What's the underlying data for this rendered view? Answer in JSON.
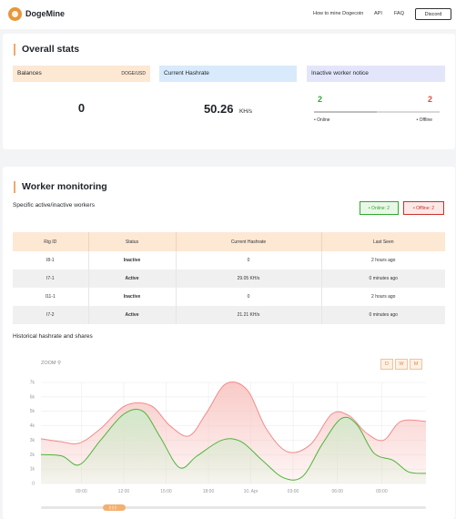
{
  "header": {
    "brand": "DogeMine",
    "nav": [
      "How to mine Dogecoin",
      "API",
      "FAQ"
    ],
    "discord": "Discord"
  },
  "overall": {
    "title": "Overall stats",
    "balances": {
      "label": "Balances",
      "unit": "DOGE/USD",
      "value": "0"
    },
    "hashrate": {
      "label": "Current Hashrate",
      "value": "50.26",
      "unit": "KH/s"
    },
    "notice": {
      "label": "Inactive worker notice",
      "online_count": "2",
      "offline_count": "2",
      "online_label": "• Online",
      "offline_label": "• Offline",
      "online_fraction": 0.5
    }
  },
  "workers": {
    "title": "Worker monitoring",
    "subtitle": "Specific active/inactive workers",
    "filter_online": "• Online: 2",
    "filter_offline": "• Offline: 2",
    "columns": [
      "Rig ID",
      "Status",
      "Current Hashrate",
      "Last Seen"
    ],
    "rows": [
      [
        "I8-1",
        "Inactive",
        "0",
        "2 hours ago"
      ],
      [
        "I7-1",
        "Active",
        "29.05 KH/s",
        "0 minutes ago"
      ],
      [
        "I11-1",
        "Inactive",
        "0",
        "2 hours ago"
      ],
      [
        "I7-2",
        "Active",
        "21.21 KH/s",
        "0 minutes ago"
      ]
    ],
    "chart_title": "Historical hashrate and shares"
  },
  "chart_data": {
    "type": "area",
    "zoom_label": "ZOOM",
    "range_buttons": [
      "D",
      "W",
      "M"
    ],
    "y_ticks": [
      "0",
      "1k",
      "2k",
      "3k",
      "4k",
      "5k",
      "6k",
      "7k"
    ],
    "ylim": [
      0,
      7000
    ],
    "x": [
      "06:00",
      "12:00",
      "18:00",
      "00:00",
      "10. Apr",
      "03:00",
      "06:00",
      "09:00"
    ],
    "x_ticks": [
      "09:00",
      "12:00",
      "15:00",
      "18:00",
      "10. Apr",
      "03:00",
      "06:00",
      "09:00"
    ],
    "x_tick_positions": [
      0.105,
      0.215,
      0.325,
      0.435,
      0.545,
      0.655,
      0.77,
      0.885
    ],
    "series": [
      {
        "color": "#f28b8b",
        "fill": "#f8c7c4",
        "points": [
          [
            0.0,
            3100
          ],
          [
            0.05,
            2900
          ],
          [
            0.1,
            2800
          ],
          [
            0.155,
            3800
          ],
          [
            0.22,
            5400
          ],
          [
            0.285,
            5400
          ],
          [
            0.335,
            4000
          ],
          [
            0.385,
            3300
          ],
          [
            0.43,
            4900
          ],
          [
            0.48,
            6900
          ],
          [
            0.535,
            6500
          ],
          [
            0.585,
            3800
          ],
          [
            0.64,
            2200
          ],
          [
            0.7,
            2700
          ],
          [
            0.755,
            4800
          ],
          [
            0.8,
            4700
          ],
          [
            0.845,
            3500
          ],
          [
            0.89,
            3000
          ],
          [
            0.935,
            4300
          ],
          [
            1.0,
            4300
          ]
        ]
      },
      {
        "color": "#4fb53a",
        "fill": "#cfeaca",
        "points": [
          [
            0.0,
            2000
          ],
          [
            0.055,
            1900
          ],
          [
            0.1,
            1300
          ],
          [
            0.155,
            3000
          ],
          [
            0.215,
            4800
          ],
          [
            0.265,
            5000
          ],
          [
            0.31,
            3200
          ],
          [
            0.36,
            1100
          ],
          [
            0.405,
            1900
          ],
          [
            0.47,
            3000
          ],
          [
            0.52,
            2900
          ],
          [
            0.575,
            1600
          ],
          [
            0.63,
            400
          ],
          [
            0.68,
            500
          ],
          [
            0.73,
            2700
          ],
          [
            0.78,
            4500
          ],
          [
            0.82,
            4100
          ],
          [
            0.865,
            2100
          ],
          [
            0.915,
            1600
          ],
          [
            0.955,
            800
          ],
          [
            1.0,
            700
          ]
        ]
      }
    ]
  }
}
